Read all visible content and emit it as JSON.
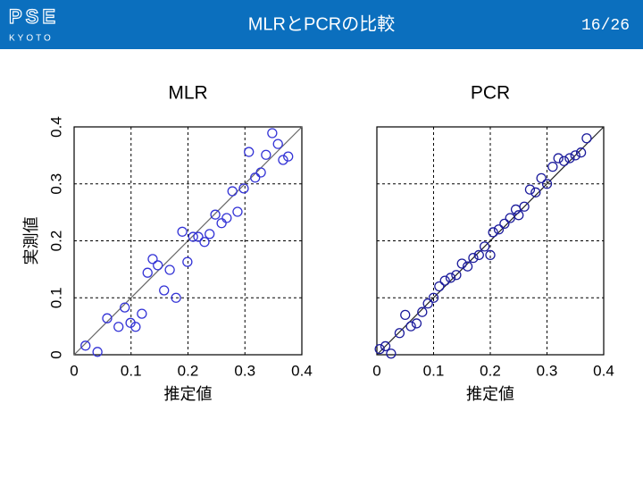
{
  "header": {
    "logo_top": "PSE",
    "logo_bottom": "KYOTO",
    "title": "MLRとPCRの比較",
    "page": "16/26"
  },
  "chart_data": [
    {
      "type": "scatter",
      "title": "MLR",
      "xlabel": "推定値",
      "ylabel": "実測値",
      "x": [
        0.02,
        0.041,
        0.058,
        0.078,
        0.089,
        0.099,
        0.108,
        0.119,
        0.129,
        0.138,
        0.147,
        0.158,
        0.168,
        0.179,
        0.19,
        0.199,
        0.209,
        0.218,
        0.229,
        0.238,
        0.248,
        0.259,
        0.268,
        0.278,
        0.287,
        0.298,
        0.307,
        0.318,
        0.328,
        0.337,
        0.348,
        0.358,
        0.367,
        0.376
      ],
      "y": [
        0.016,
        0.005,
        0.064,
        0.049,
        0.083,
        0.056,
        0.049,
        0.072,
        0.144,
        0.168,
        0.157,
        0.113,
        0.149,
        0.1,
        0.216,
        0.163,
        0.207,
        0.207,
        0.198,
        0.212,
        0.246,
        0.231,
        0.24,
        0.287,
        0.251,
        0.292,
        0.356,
        0.311,
        0.32,
        0.351,
        0.389,
        0.37,
        0.342,
        0.348
      ],
      "color": "#3434d6",
      "line_color": "#666666",
      "reference_line": true,
      "grid": true,
      "ytick_labels": true,
      "xlim": [
        0,
        0.4
      ],
      "ylim": [
        0,
        0.4
      ],
      "xticks": [
        0,
        0.1,
        0.2,
        0.3,
        0.4
      ],
      "yticks": [
        0,
        0.1,
        0.2,
        0.3,
        0.4
      ]
    },
    {
      "type": "scatter",
      "title": "PCR",
      "xlabel": "推定値",
      "x": [
        0.005,
        0.015,
        0.025,
        0.04,
        0.05,
        0.06,
        0.07,
        0.08,
        0.09,
        0.1,
        0.11,
        0.12,
        0.13,
        0.14,
        0.15,
        0.16,
        0.17,
        0.18,
        0.19,
        0.2,
        0.205,
        0.215,
        0.225,
        0.235,
        0.245,
        0.25,
        0.26,
        0.27,
        0.28,
        0.29,
        0.3,
        0.31,
        0.32,
        0.33,
        0.34,
        0.35,
        0.36,
        0.37
      ],
      "y": [
        0.01,
        0.015,
        0.002,
        0.038,
        0.07,
        0.05,
        0.055,
        0.075,
        0.09,
        0.1,
        0.12,
        0.13,
        0.135,
        0.14,
        0.16,
        0.155,
        0.17,
        0.175,
        0.19,
        0.175,
        0.215,
        0.22,
        0.23,
        0.24,
        0.255,
        0.245,
        0.26,
        0.29,
        0.285,
        0.31,
        0.3,
        0.33,
        0.345,
        0.34,
        0.345,
        0.35,
        0.355,
        0.38
      ],
      "color": "#1c1c9c",
      "line_color": "#222222",
      "reference_line": true,
      "grid": true,
      "ytick_labels": false,
      "xlim": [
        0,
        0.4
      ],
      "ylim": [
        0,
        0.4
      ],
      "xticks": [
        0,
        0.1,
        0.2,
        0.3,
        0.4
      ],
      "yticks": [
        0,
        0.1,
        0.2,
        0.3,
        0.4
      ]
    }
  ]
}
